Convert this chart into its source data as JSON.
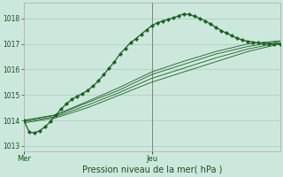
{
  "xlabel": "Pression niveau de la mer( hPa )",
  "bg_color": "#cce8dc",
  "grid_color": "#aaccba",
  "line_color": "#1a6020",
  "tick_color": "#1a5020",
  "ylim": [
    1012.8,
    1018.6
  ],
  "xlim": [
    0,
    48
  ],
  "yticks": [
    1013,
    1014,
    1015,
    1016,
    1017,
    1018
  ],
  "xtick_positions": [
    0,
    24
  ],
  "xtick_labels": [
    "Mer",
    "Jeu"
  ],
  "vline_x": 24,
  "main_line_x": [
    0,
    1,
    2,
    3,
    4,
    5,
    6,
    7,
    8,
    9,
    10,
    11,
    12,
    13,
    14,
    15,
    16,
    17,
    18,
    19,
    20,
    21,
    22,
    23,
    24,
    25,
    26,
    27,
    28,
    29,
    30,
    31,
    32,
    33,
    34,
    35,
    36,
    37,
    38,
    39,
    40,
    41,
    42,
    43,
    44,
    45,
    46,
    47,
    48
  ],
  "main_line_y": [
    1014.0,
    1013.55,
    1013.5,
    1013.6,
    1013.75,
    1013.95,
    1014.2,
    1014.45,
    1014.65,
    1014.82,
    1014.95,
    1015.05,
    1015.18,
    1015.35,
    1015.55,
    1015.8,
    1016.05,
    1016.3,
    1016.6,
    1016.82,
    1017.05,
    1017.2,
    1017.38,
    1017.55,
    1017.72,
    1017.82,
    1017.9,
    1017.96,
    1018.02,
    1018.1,
    1018.18,
    1018.15,
    1018.08,
    1018.0,
    1017.9,
    1017.78,
    1017.65,
    1017.52,
    1017.42,
    1017.32,
    1017.22,
    1017.15,
    1017.1,
    1017.07,
    1017.04,
    1017.02,
    1017.0,
    1017.0,
    1017.0
  ],
  "band_lines": [
    [
      0,
      1013.9,
      6,
      1014.1,
      12,
      1014.5,
      18,
      1015.0,
      24,
      1015.5,
      30,
      1015.9,
      36,
      1016.3,
      42,
      1016.7,
      48,
      1017.0
    ],
    [
      0,
      1013.95,
      6,
      1014.15,
      12,
      1014.6,
      18,
      1015.1,
      24,
      1015.65,
      30,
      1016.05,
      36,
      1016.45,
      42,
      1016.8,
      48,
      1017.05
    ],
    [
      0,
      1014.0,
      6,
      1014.2,
      12,
      1014.7,
      18,
      1015.2,
      24,
      1015.8,
      30,
      1016.2,
      36,
      1016.6,
      42,
      1016.9,
      48,
      1017.1
    ],
    [
      0,
      1014.0,
      6,
      1014.22,
      12,
      1014.75,
      18,
      1015.3,
      24,
      1015.9,
      30,
      1016.32,
      36,
      1016.7,
      42,
      1017.0,
      48,
      1017.12
    ]
  ],
  "marker_style": "D",
  "marker_size": 2.2,
  "main_linewidth": 0.9,
  "band_linewidth": 0.6
}
